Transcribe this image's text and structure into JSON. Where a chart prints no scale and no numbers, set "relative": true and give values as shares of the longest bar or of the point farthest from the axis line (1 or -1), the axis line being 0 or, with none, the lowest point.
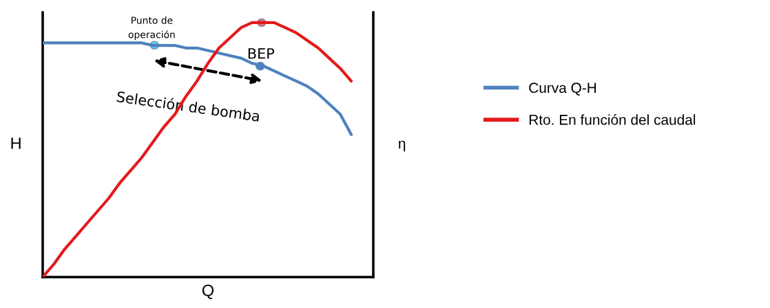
{
  "chart_data": {
    "type": "line",
    "relative": true,
    "xlabel": "Q",
    "ylabel": "H",
    "y2label": "η",
    "legend": "right",
    "grid": false,
    "categories": [
      null,
      null,
      null,
      null,
      null,
      null,
      null,
      null,
      null,
      null,
      null,
      null,
      null,
      null,
      null,
      null,
      null,
      null,
      null,
      null,
      null,
      null,
      null,
      null,
      null,
      null,
      null,
      null,
      null
    ],
    "series": [
      {
        "name": "Curva Q-H",
        "color": "#4f81bd",
        "values": [
          0.92,
          0.92,
          0.92,
          0.92,
          0.92,
          0.92,
          0.92,
          0.92,
          0.92,
          0.92,
          0.91,
          0.91,
          0.91,
          0.9,
          0.9,
          0.89,
          0.88,
          0.87,
          0.86,
          0.84,
          0.83,
          0.81,
          0.79,
          0.77,
          0.75,
          0.72,
          0.68,
          0.64,
          0.56
        ]
      },
      {
        "name": "Rto. En función del caudal",
        "color": "#e31a1c",
        "values": [
          0,
          0.05,
          0.11,
          0.16,
          0.21,
          0.26,
          0.31,
          0.37,
          0.42,
          0.47,
          0.53,
          0.59,
          0.64,
          0.71,
          0.77,
          0.84,
          0.9,
          0.94,
          0.98,
          1.0,
          1.0,
          1.0,
          0.98,
          0.96,
          0.93,
          0.9,
          0.86,
          0.82,
          0.77
        ]
      }
    ],
    "annotations": [
      "Punto de\noperación",
      "BEP",
      "Selección de bomba"
    ]
  }
}
